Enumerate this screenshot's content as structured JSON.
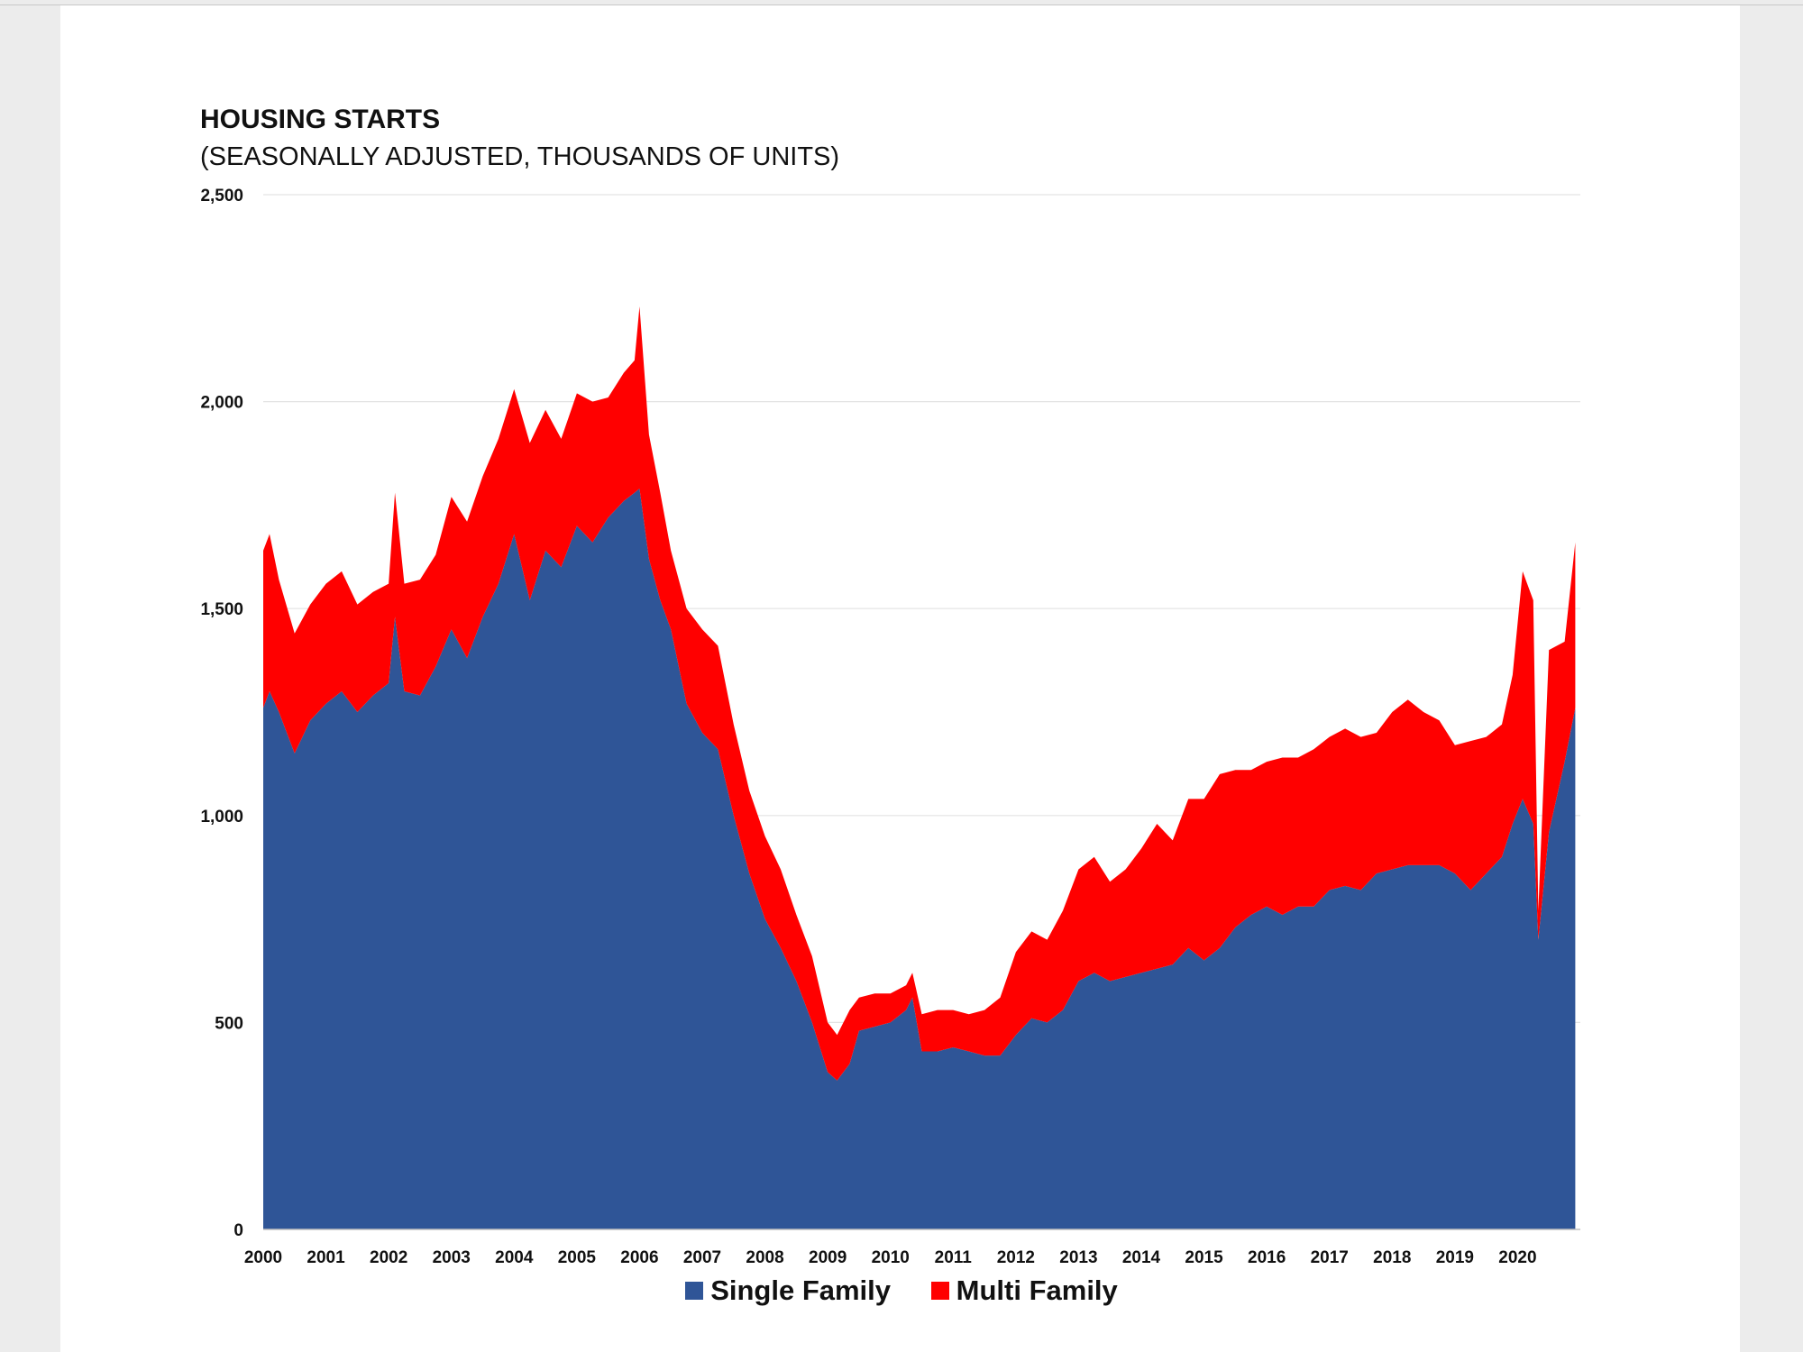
{
  "chart_data": {
    "type": "area",
    "stacked": true,
    "title": "HOUSING STARTS",
    "subtitle": "(SEASONALLY ADJUSTED, THOUSANDS OF UNITS)",
    "ylim": [
      0,
      2500
    ],
    "yticks": [
      0,
      500,
      1000,
      1500,
      2000,
      2500
    ],
    "ytick_labels": [
      "0",
      "500",
      "1,000",
      "1,500",
      "2,000",
      "2,500"
    ],
    "xlim": [
      2000,
      2021
    ],
    "xticks": [
      2000,
      2001,
      2002,
      2003,
      2004,
      2005,
      2006,
      2007,
      2008,
      2009,
      2010,
      2011,
      2012,
      2013,
      2014,
      2015,
      2016,
      2017,
      2018,
      2019,
      2020
    ],
    "xtick_labels": [
      "2000",
      "2001",
      "2002",
      "2003",
      "2004",
      "2005",
      "2006",
      "2007",
      "2008",
      "2009",
      "2010",
      "2011",
      "2012",
      "2013",
      "2014",
      "2015",
      "2016",
      "2017",
      "2018",
      "2019",
      "2020"
    ],
    "grid": "horizontal",
    "legend_position": "bottom-center",
    "x": [
      2000.0,
      2000.1,
      2000.25,
      2000.5,
      2000.75,
      2001.0,
      2001.25,
      2001.5,
      2001.75,
      2002.0,
      2002.1,
      2002.25,
      2002.5,
      2002.75,
      2003.0,
      2003.25,
      2003.5,
      2003.75,
      2004.0,
      2004.25,
      2004.5,
      2004.75,
      2005.0,
      2005.25,
      2005.5,
      2005.75,
      2005.92,
      2006.0,
      2006.15,
      2006.33,
      2006.5,
      2006.75,
      2007.0,
      2007.25,
      2007.5,
      2007.75,
      2008.0,
      2008.25,
      2008.5,
      2008.75,
      2009.0,
      2009.15,
      2009.35,
      2009.5,
      2009.75,
      2010.0,
      2010.25,
      2010.35,
      2010.5,
      2010.75,
      2011.0,
      2011.25,
      2011.5,
      2011.75,
      2012.0,
      2012.25,
      2012.5,
      2012.75,
      2013.0,
      2013.25,
      2013.5,
      2013.75,
      2014.0,
      2014.25,
      2014.5,
      2014.75,
      2015.0,
      2015.25,
      2015.5,
      2015.75,
      2016.0,
      2016.25,
      2016.5,
      2016.75,
      2017.0,
      2017.25,
      2017.5,
      2017.75,
      2018.0,
      2018.25,
      2018.5,
      2018.75,
      2019.0,
      2019.25,
      2019.5,
      2019.75,
      2019.92,
      2020.08,
      2020.25,
      2020.33,
      2020.5,
      2020.75,
      2020.92
    ],
    "series": [
      {
        "name": "Single Family",
        "color": "#2f5597",
        "values": [
          1260,
          1300,
          1250,
          1150,
          1230,
          1270,
          1300,
          1250,
          1290,
          1320,
          1480,
          1300,
          1290,
          1360,
          1450,
          1380,
          1480,
          1560,
          1680,
          1520,
          1640,
          1600,
          1700,
          1660,
          1720,
          1760,
          1780,
          1790,
          1620,
          1520,
          1450,
          1270,
          1200,
          1160,
          1000,
          860,
          750,
          680,
          600,
          500,
          380,
          360,
          400,
          480,
          490,
          500,
          530,
          560,
          430,
          430,
          440,
          430,
          420,
          420,
          470,
          510,
          500,
          530,
          600,
          620,
          600,
          610,
          620,
          630,
          640,
          680,
          650,
          680,
          730,
          760,
          780,
          760,
          780,
          780,
          820,
          830,
          820,
          860,
          870,
          880,
          880,
          880,
          860,
          820,
          860,
          900,
          980,
          1040,
          980,
          700,
          960,
          1130,
          1260
        ]
      },
      {
        "name": "Multi Family",
        "color": "#ff0000",
        "values": [
          380,
          380,
          320,
          290,
          280,
          290,
          290,
          260,
          250,
          240,
          300,
          260,
          280,
          270,
          320,
          330,
          340,
          350,
          350,
          380,
          340,
          310,
          320,
          340,
          290,
          310,
          320,
          440,
          300,
          260,
          190,
          230,
          250,
          250,
          220,
          200,
          200,
          190,
          160,
          160,
          120,
          110,
          130,
          80,
          80,
          70,
          60,
          60,
          90,
          100,
          90,
          90,
          110,
          140,
          200,
          210,
          200,
          240,
          270,
          280,
          240,
          260,
          300,
          350,
          300,
          360,
          390,
          420,
          380,
          350,
          350,
          380,
          360,
          380,
          370,
          380,
          370,
          340,
          380,
          400,
          370,
          350,
          310,
          360,
          330,
          320,
          360,
          550,
          540,
          70,
          440,
          290,
          400
        ]
      }
    ]
  }
}
